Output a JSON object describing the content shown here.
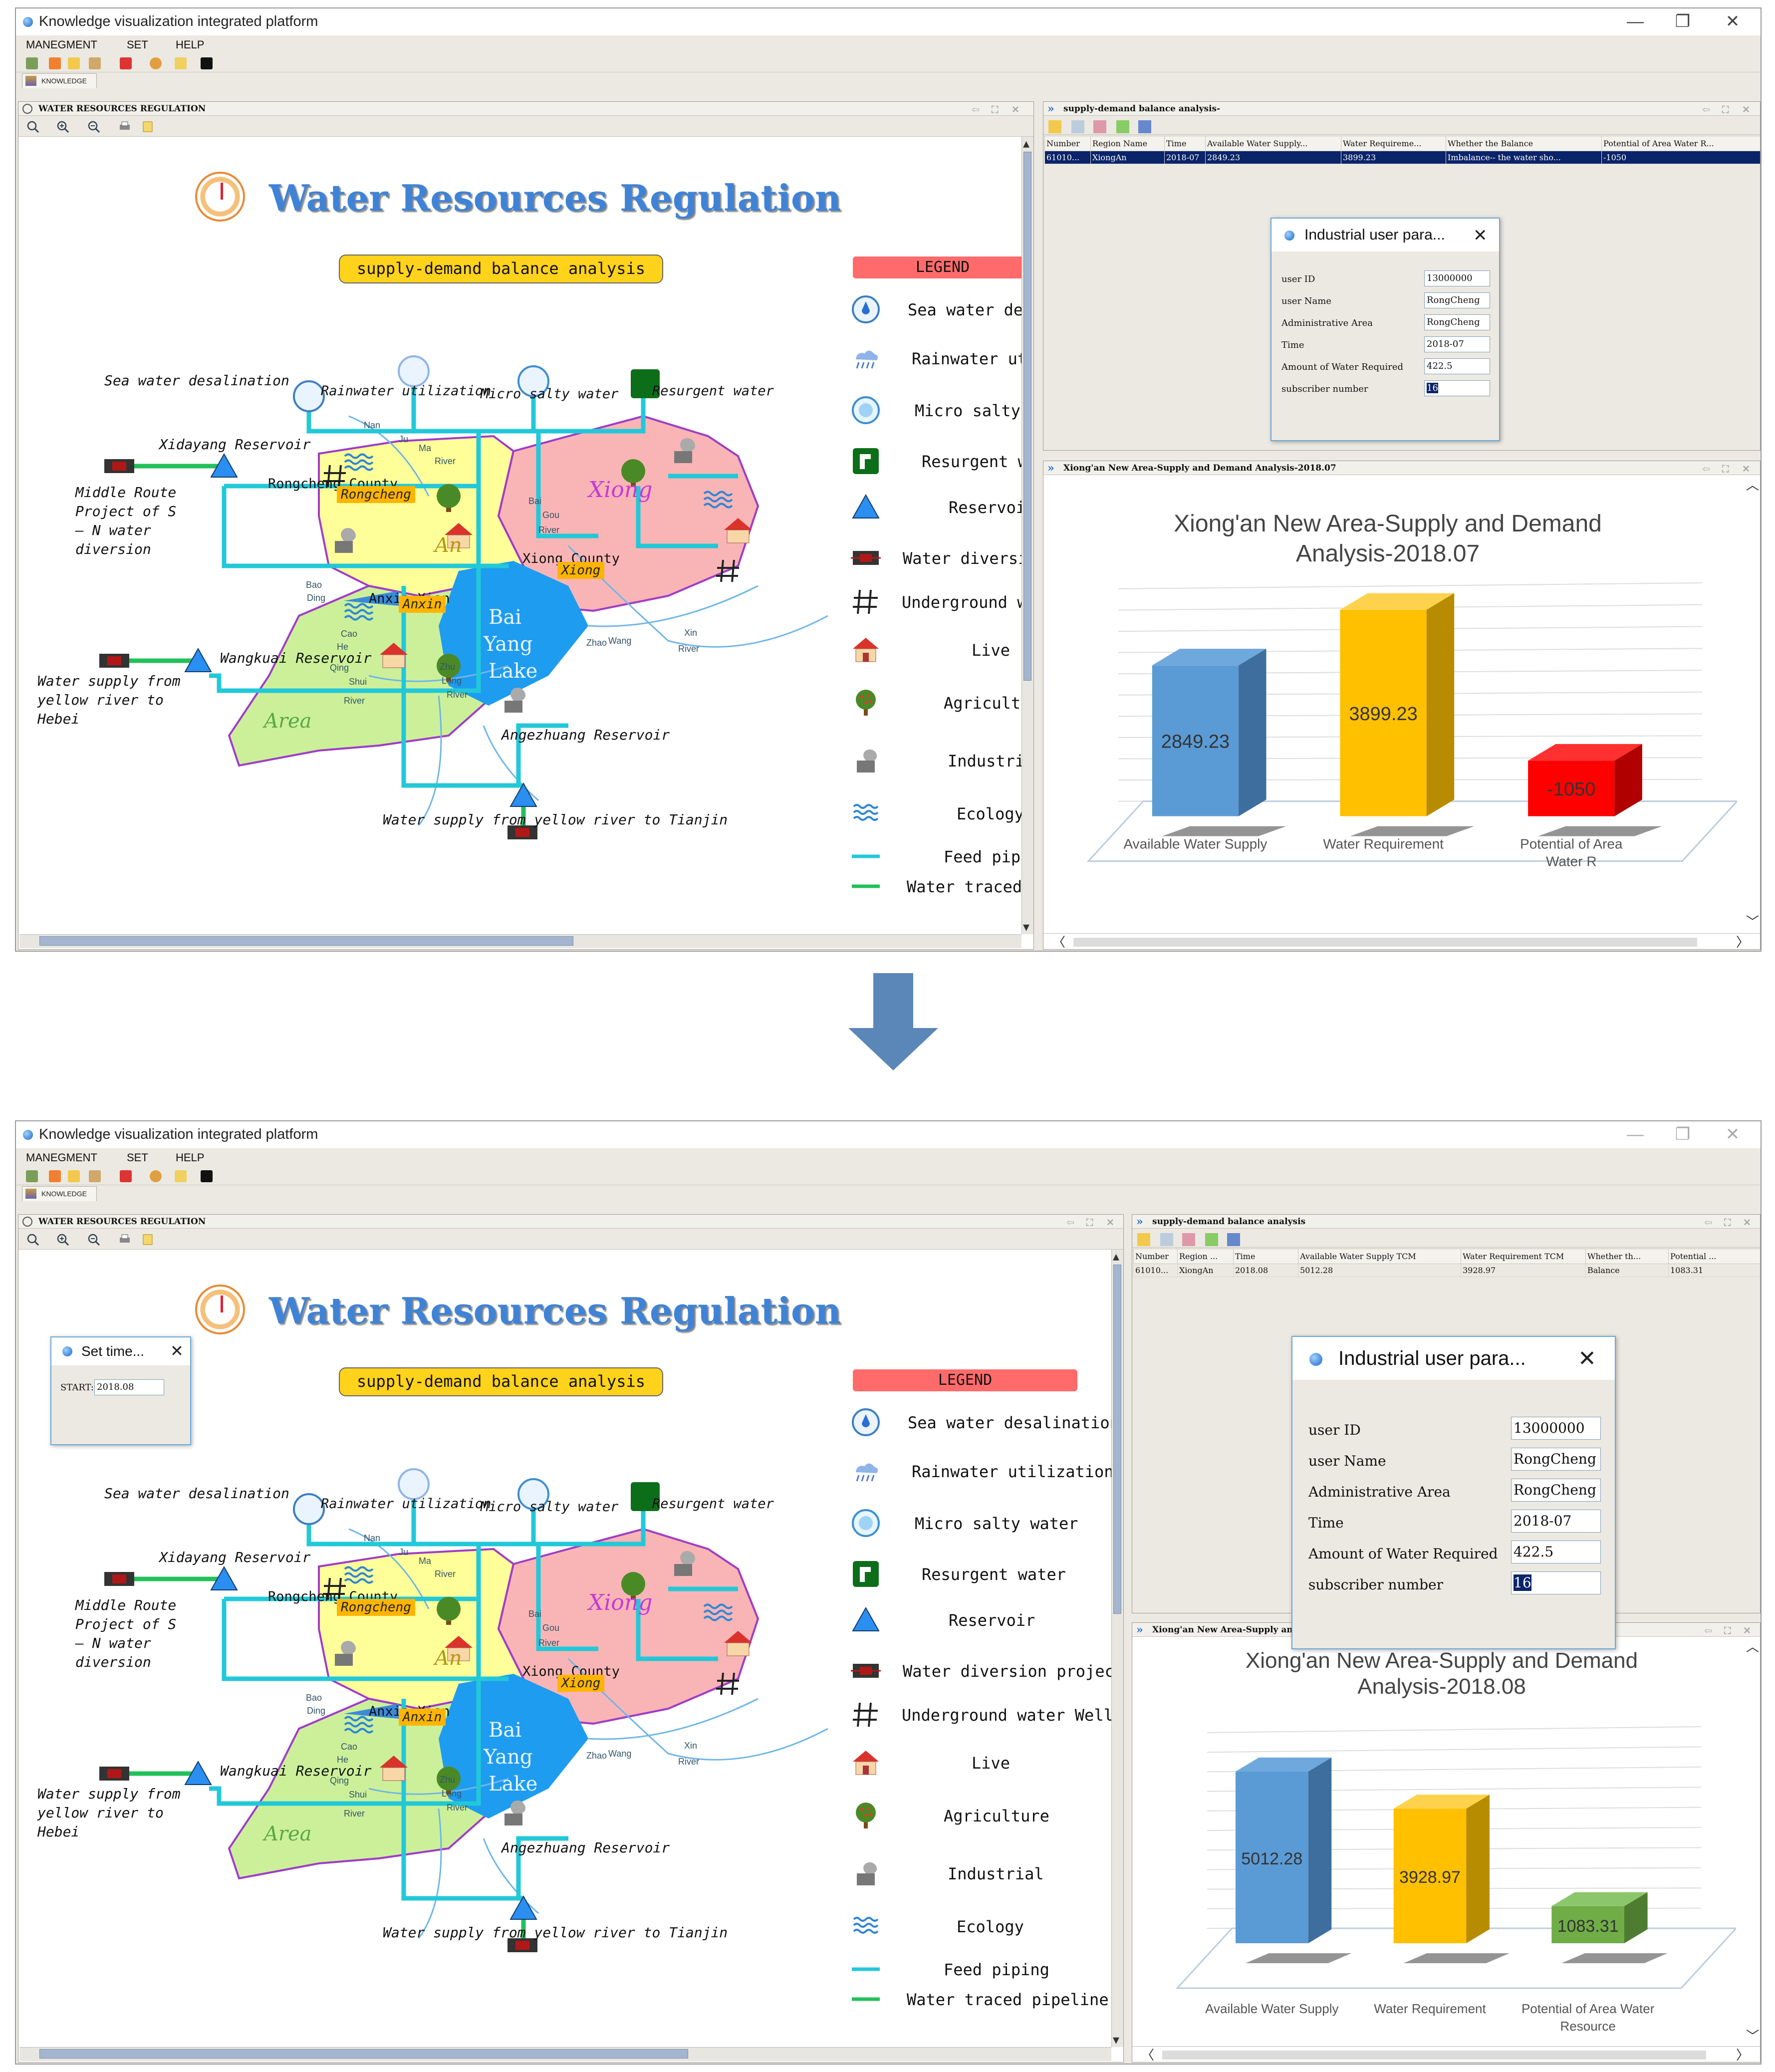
{
  "app": {
    "title": "Knowledge visualization integrated platform",
    "menu": [
      "MANEGMENT",
      "SET",
      "HELP"
    ],
    "win_min": "—",
    "win_max": "❐",
    "win_close": "✕",
    "tab_label": "KNOWLEDGE"
  },
  "map_panel": {
    "header": "WATER RESOURCES REGULATION",
    "title": "Water Resources Regulation",
    "subtitle": "supply-demand balance analysis",
    "labels": {
      "sea": "Sea water desalination",
      "rain": "Rainwater utilization",
      "micro": "Micro salty water",
      "resurgent": "Resurgent water",
      "xidayang": "Xidayang Reservoir",
      "middle_route": [
        "Middle Route",
        "Project of S",
        "– N water",
        "diversion"
      ],
      "wangkuai": "Wangkuai Reservoir",
      "yellow_hebei": [
        "Water supply from",
        "yellow river to",
        "Hebei"
      ],
      "angezhuang": "Angezhuang Reservoir",
      "yellow_tianjin": "Water supply from yellow river to Tianjin",
      "rongcheng_county": "Rongcheng County",
      "xiong_county": "Xiong County",
      "anxin_county": "Anxin Xian",
      "tag_rongcheng": "Rongcheng",
      "tag_anxin": "Anxin",
      "tag_xiong": "Xiong",
      "xiong_big": "Xiong",
      "an_big": "An",
      "area_big": "Area",
      "lake": [
        "Bai",
        "Yang",
        "Lake"
      ],
      "small": [
        "Nan",
        "Ju",
        "Ma",
        "River",
        "Bai",
        "Gou",
        "River",
        "Bao",
        "Ding",
        "Cao",
        "He",
        "Qing",
        "Shui",
        "River",
        "Zhu",
        "Long",
        "River",
        "Zhao",
        "Wang",
        "Xin",
        "River"
      ]
    },
    "legend": {
      "header": "LEGEND",
      "items": [
        "Sea water desalination",
        "Rainwater utilization",
        "Micro salty water",
        "Resurgent water",
        "Reservoir",
        "Water diversion project",
        "Underground water Wells",
        "Live",
        "Agriculture",
        "Industrial",
        "Ecology",
        "Feed piping",
        "Water traced pipeline"
      ],
      "items_top": [
        "Sea water desal",
        "Rainwater util",
        "Micro salty wa",
        "Resurgent wat",
        "Reservoir",
        "Water diversion",
        "Underground wat",
        "Live",
        "Agriculture",
        "Industrial",
        "Ecology",
        "Feed piping",
        "Water traced p"
      ]
    },
    "set_time": {
      "title": "Set time...",
      "label": "START:",
      "value": "2018.08"
    }
  },
  "balance_top": {
    "header": "supply-demand balance analysis-",
    "columns": [
      "Number",
      "Region Name",
      "Time",
      "Available Water Supply...",
      "Water Requireme...",
      "Whether the Balance",
      "Potential of Area Water R..."
    ],
    "row": [
      "61010...",
      "XiongAn",
      "2018-07",
      "2849.23",
      "3899.23",
      "Imbalance-- the water sho...",
      "-1050"
    ]
  },
  "balance_bottom": {
    "header": "supply-demand balance analysis",
    "columns": [
      "Number",
      "Region ...",
      "Time",
      "Available Water Supply TCM",
      "Water Requirement TCM",
      "Whether th...",
      "Potential ..."
    ],
    "row": [
      "61010...",
      "XiongAn",
      "2018.08",
      "5012.28",
      "3928.97",
      "Balance",
      "1083.31"
    ]
  },
  "dialog": {
    "title": "Industrial user para...",
    "fields": [
      {
        "label": "user ID",
        "value": "13000000"
      },
      {
        "label": "user Name",
        "value": "RongCheng"
      },
      {
        "label": "Administrative Area",
        "value": "RongCheng"
      },
      {
        "label": "Time",
        "value": "2018-07"
      },
      {
        "label": "Amount of Water Required",
        "value": "422.5"
      },
      {
        "label": "subscriber number",
        "value": "16"
      }
    ]
  },
  "chart_top_header": "Xiong'an New Area-Supply and Demand Analysis-2018.07",
  "chart_bottom_header": "Xiong'an New Area-Supply and Demand Analysis-2018.08",
  "chart_top_title": [
    "Xiong'an New Area-Supply and Demand",
    "Analysis-2018.07"
  ],
  "chart_bottom_title": [
    "Xiong'an New Area-Supply and Demand",
    "Analysis-2018.08"
  ],
  "chart_data": [
    {
      "type": "bar",
      "title": "Xiong'an New Area-Supply and Demand Analysis-2018.07",
      "categories": [
        "Available Water Supply",
        "Water Requirement",
        "Potential of Area Water Resource"
      ],
      "category_labels_visible": [
        "Available Water Supply",
        "Water Requirement",
        "Potential of Area",
        "Water R"
      ],
      "values": [
        2849.23,
        3899.23,
        -1050
      ],
      "data_labels": [
        "2849.23",
        "3899.23",
        "-1050"
      ],
      "colors": [
        "#5b9bd5",
        "#ffc000",
        "#ff0000"
      ],
      "ylim": [
        -1050,
        4200
      ],
      "grid": true
    },
    {
      "type": "bar",
      "title": "Xiong'an New Area-Supply and Demand Analysis-2018.08",
      "categories": [
        "Available Water Supply",
        "Water Requirement",
        "Potential of Area Water Resource"
      ],
      "category_labels_visible": [
        "Available Water Supply",
        "Water Requirement",
        "Potential of Area Water",
        "Resource"
      ],
      "values": [
        5012.28,
        3928.97,
        1083.31
      ],
      "data_labels": [
        "5012.28",
        "3928.97",
        "1083.31"
      ],
      "colors": [
        "#5b9bd5",
        "#ffc000",
        "#70ad47"
      ],
      "ylim": [
        0,
        6000
      ],
      "grid": true
    }
  ],
  "colors": {
    "accent_blue": "#3f83d6",
    "selection": "#0a246a",
    "banner": "#ffd21b",
    "legend": "#ff6b6b",
    "pipe_feed": "#22c8d8",
    "pipe_traced": "#22c05a"
  },
  "icons": [
    "app-icon",
    "reservoir-triangle-icon",
    "water-diversion-icon",
    "underground-well-icon",
    "live-house-icon",
    "agriculture-tree-icon",
    "industrial-icon",
    "ecology-wave-icon",
    "sea-water-icon",
    "rainwater-icon",
    "micro-salty-icon",
    "resurgent-icon",
    "clock-icon",
    "down-arrow-icon"
  ]
}
